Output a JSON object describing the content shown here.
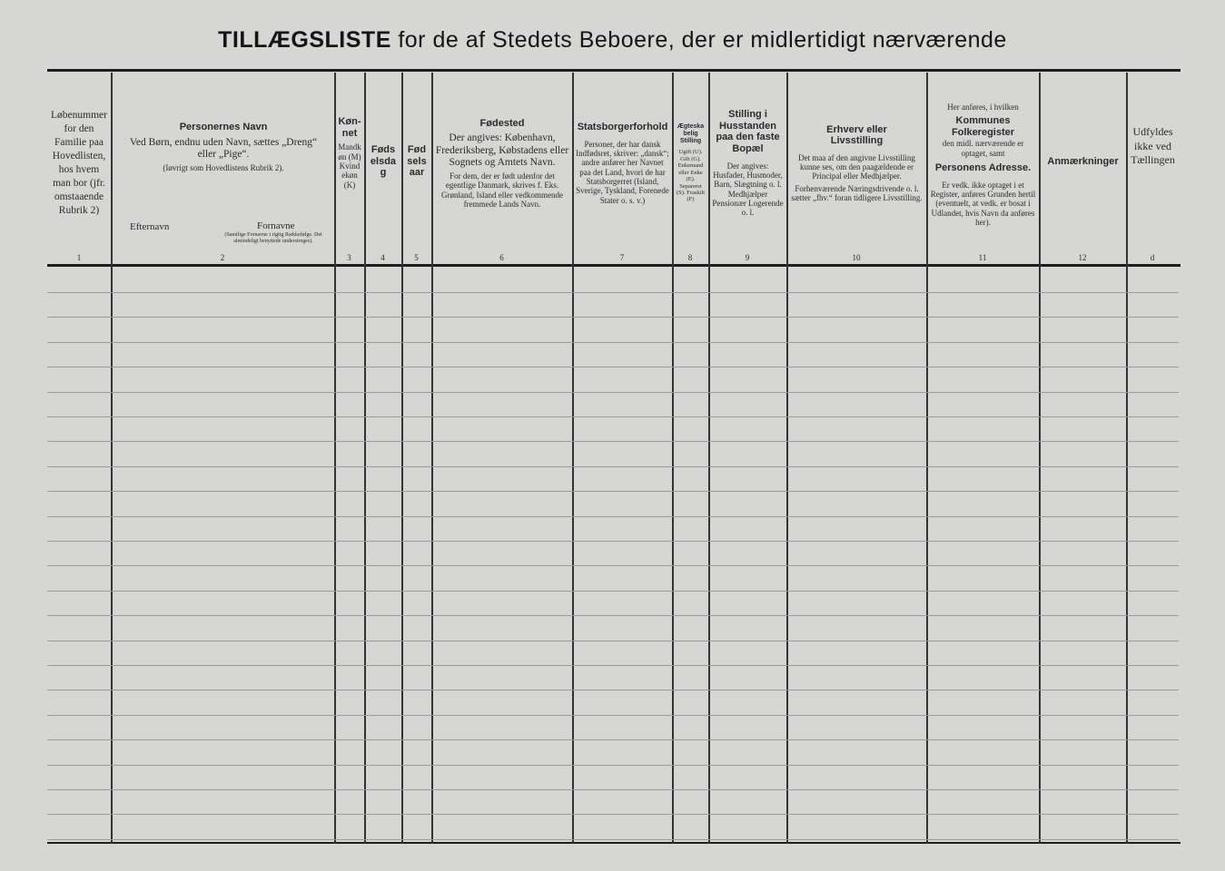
{
  "title": {
    "main": "TILLÆGSLISTE",
    "rest": "for de af Stedets Beboere, der er midlertidigt nærværende"
  },
  "columns": [
    {
      "num": "1",
      "title": "",
      "body": "Løbenummer for den Familie paa Hovedlisten, hos hvem man bor (jfr. omstaaende Rubrik 2)",
      "note": ""
    },
    {
      "num": "2",
      "title": "Personernes Navn",
      "body": "Ved Børn, endnu uden Navn, sættes „Dreng“ eller „Pige“.",
      "note": "(Iøvrigt som Hovedlistens Rubrik 2).",
      "sub1": "Efternavn",
      "sub2": "Fornavne",
      "sub2note": "(Samtlige Fornavne i rigtig Rækkefølge. Det almindeligt benyttede understreges)."
    },
    {
      "num": "3",
      "title": "Køn-net",
      "body": "Mandkøn (M) Kvindekøn (K)",
      "note": ""
    },
    {
      "num": "4",
      "title": "Fødselsdag",
      "body": "",
      "note": ""
    },
    {
      "num": "5",
      "title": "Fødselsaar",
      "body": "",
      "note": ""
    },
    {
      "num": "6",
      "title": "Fødested",
      "body": "Der angives: København, Frederiksberg, Købstadens eller Sognets og Amtets Navn.",
      "note": "For dem, der er født udenfor det egentlige Danmark, skrives f. Eks. Grønland, Island eller vedkommende fremmede Lands Navn."
    },
    {
      "num": "7",
      "title": "Statsborgerforhold",
      "body": "Personer, der har dansk Indfødsret, skriver: „dansk“; andre anfører her Navnet paa det Land, hvori de har Statsborgerret (Island, Sverige, Tyskland, Forenede Stater o. s. v.)",
      "note": ""
    },
    {
      "num": "8",
      "title": "Ægteskabelig Stilling",
      "body": "Ugift (U). Gift (G). Enkemand eller Enke (E). Separeret (S). Fraskilt (F)",
      "note": ""
    },
    {
      "num": "9",
      "title": "Stilling i Husstanden paa den faste Bopæl",
      "body": "Der angives: Husfader, Husmoder, Barn, Slægtning o. l. Medhjælper Pensionær Logerende o. l.",
      "note": ""
    },
    {
      "num": "10",
      "title": "Erhverv eller Livsstilling",
      "body": "Det maa af den angivne Livsstilling kunne ses, om den paagældende er Principal eller Medhjælper.",
      "note": "Forhenværende Næringsdrivende o. l. sætter „fhv.“ foran tidligere Livsstilling."
    },
    {
      "num": "11",
      "title": "Kommunes Folkeregister",
      "pre": "Her anføres, i hvilken",
      "body": "den midl. nærværende er optaget, samt",
      "title2": "Personens Adresse.",
      "note": "Er vedk. ikke optaget i et Register, anføres Grunden hertil (eventuelt, at vedk. er bosat i Udlandet, hvis Navn da anføres her)."
    },
    {
      "num": "12",
      "title": "Anmærkninger",
      "body": "",
      "note": ""
    },
    {
      "num": "d",
      "title": "",
      "body": "Udfyldes ikke ved Tællingen",
      "note": ""
    }
  ]
}
